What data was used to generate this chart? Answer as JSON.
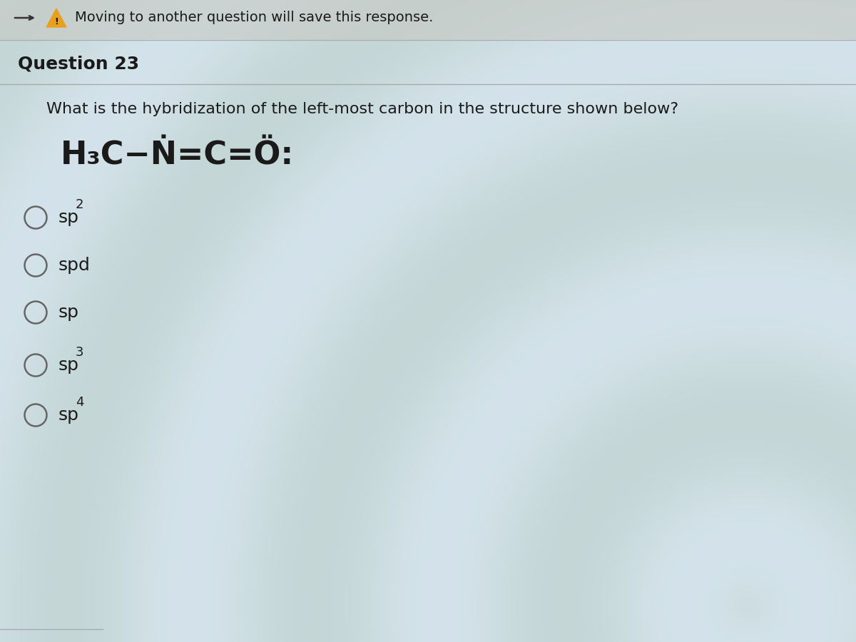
{
  "bg_color": "#c8ccc8",
  "warning_text": "Moving to another question will save this response.",
  "question_label": "Question 23",
  "question_text": "What is the hybridization of the left-most carbon in the structure shown below?",
  "chemical_formula": "H₃C−Ṅ=C=Ö:",
  "options": [
    {
      "label": "sp",
      "superscript": "2"
    },
    {
      "label": "spd",
      "superscript": ""
    },
    {
      "label": "sp",
      "superscript": ""
    },
    {
      "label": "sp",
      "superscript": "3"
    },
    {
      "label": "sp",
      "superscript": "4"
    }
  ],
  "text_color": "#1a1a1a",
  "circle_color": "#666666",
  "top_bar_bg": "#d0d4d0",
  "font_size_warning": 14,
  "font_size_question_label": 18,
  "font_size_question_text": 16,
  "font_size_chemical": 32,
  "font_size_options": 18,
  "font_size_superscript": 13
}
